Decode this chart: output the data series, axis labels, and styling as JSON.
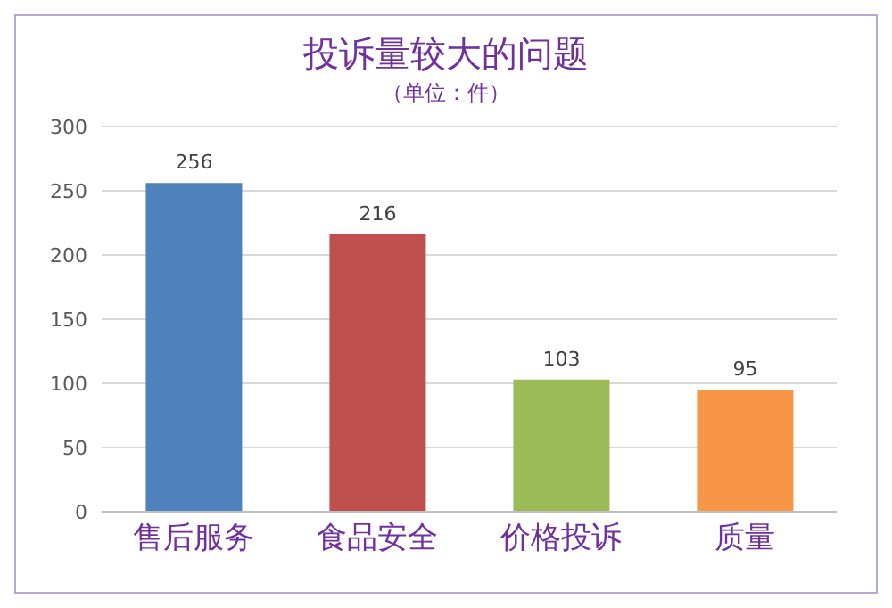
{
  "chart_data": {
    "type": "bar",
    "title": "投诉量较大的问题",
    "subtitle": "（单位：件）",
    "categories": [
      "售后服务",
      "食品安全",
      "价格投诉",
      "质量"
    ],
    "values": [
      256,
      216,
      103,
      95
    ],
    "colors": [
      "#4f81bd",
      "#c0504d",
      "#9bbb59",
      "#f79646"
    ],
    "ylim": [
      0,
      300
    ],
    "yticks": [
      0,
      50,
      100,
      150,
      200,
      250,
      300
    ],
    "grid": "y",
    "data_labels": true
  }
}
